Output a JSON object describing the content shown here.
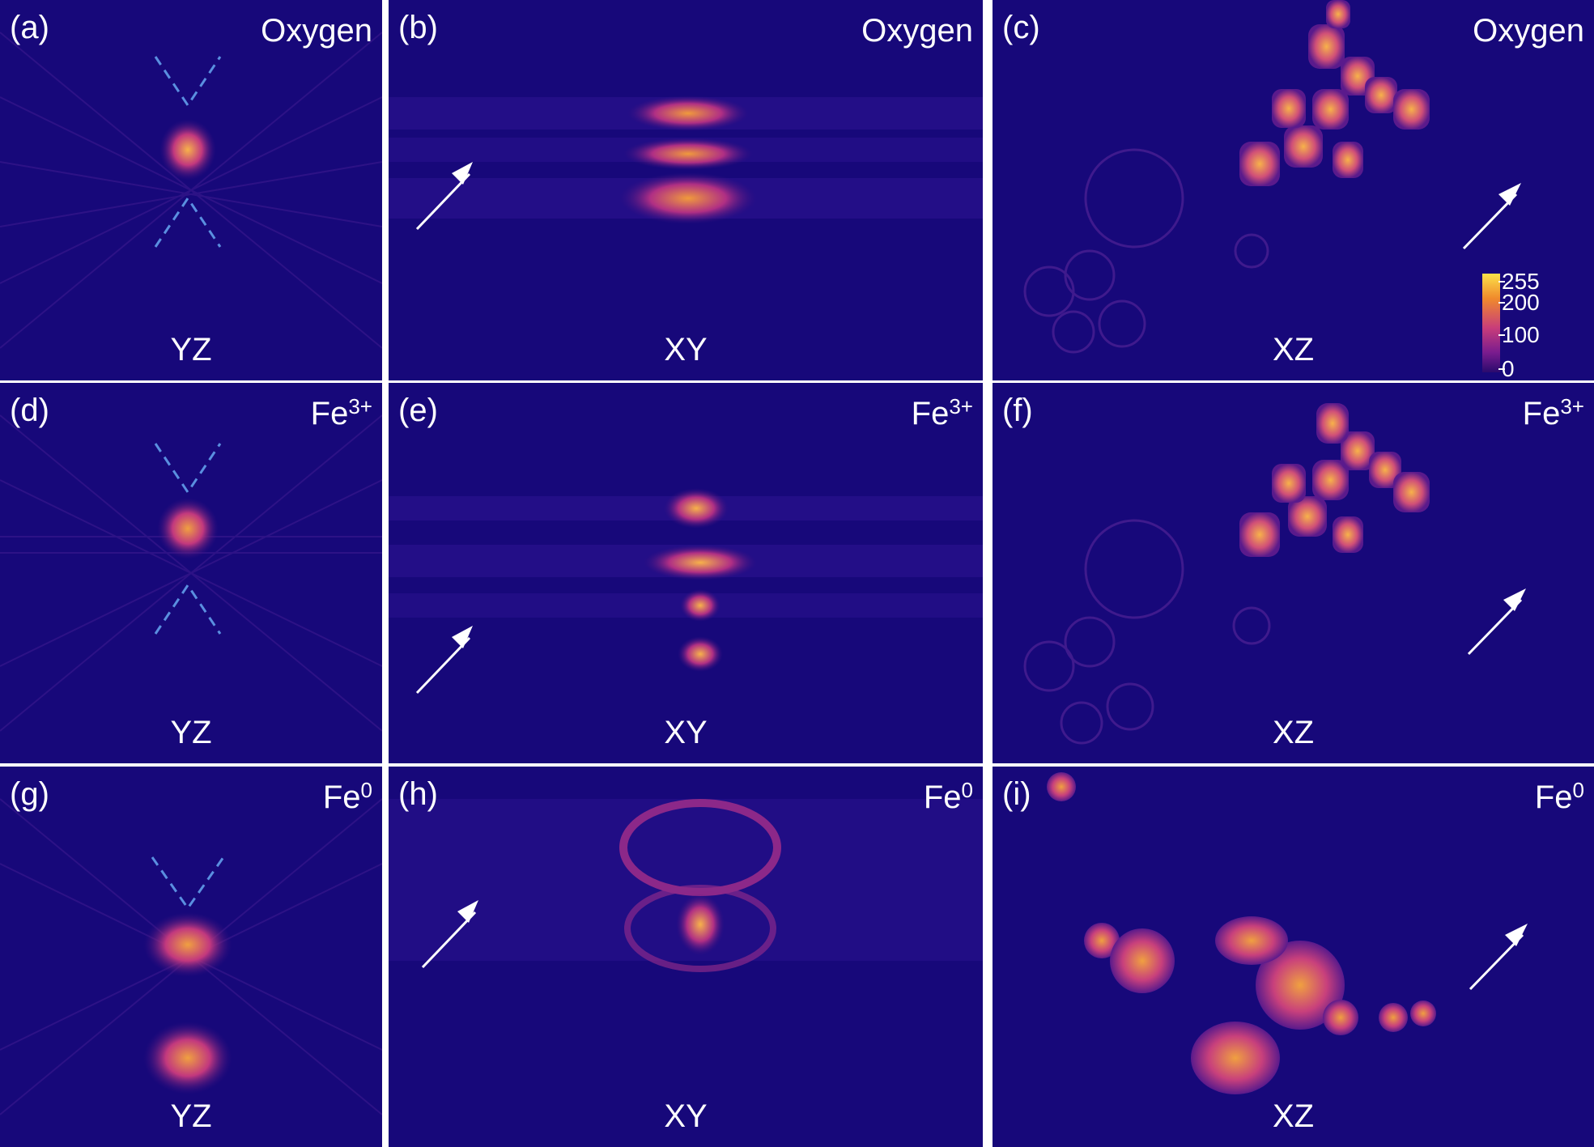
{
  "panels": [
    {
      "id": "a",
      "letter": "(a)",
      "element": "Oxygen",
      "superscript": "",
      "plane": "YZ"
    },
    {
      "id": "b",
      "letter": "(b)",
      "element": "Oxygen",
      "superscript": "",
      "plane": "XY"
    },
    {
      "id": "c",
      "letter": "(c)",
      "element": "Oxygen",
      "superscript": "",
      "plane": "XZ"
    },
    {
      "id": "d",
      "letter": "(d)",
      "element": "Fe",
      "superscript": "3+",
      "plane": "YZ"
    },
    {
      "id": "e",
      "letter": "(e)",
      "element": "Fe",
      "superscript": "3+",
      "plane": "XY"
    },
    {
      "id": "f",
      "letter": "(f)",
      "element": "Fe",
      "superscript": "3+",
      "plane": "XZ"
    },
    {
      "id": "g",
      "letter": "(g)",
      "element": "Fe",
      "superscript": "0",
      "plane": "YZ"
    },
    {
      "id": "h",
      "letter": "(h)",
      "element": "Fe",
      "superscript": "0",
      "plane": "XY"
    },
    {
      "id": "i",
      "letter": "(i)",
      "element": "Fe",
      "superscript": "0",
      "plane": "XZ"
    }
  ],
  "colorbar": {
    "ticks": [
      "255",
      "200",
      "100",
      "0"
    ]
  },
  "colors": {
    "background": "#17087a",
    "accent_bright": "#fbe24a",
    "accent_mid": "#e0527a",
    "dashes": "#5a8fe0",
    "arrow": "#ffffff"
  }
}
